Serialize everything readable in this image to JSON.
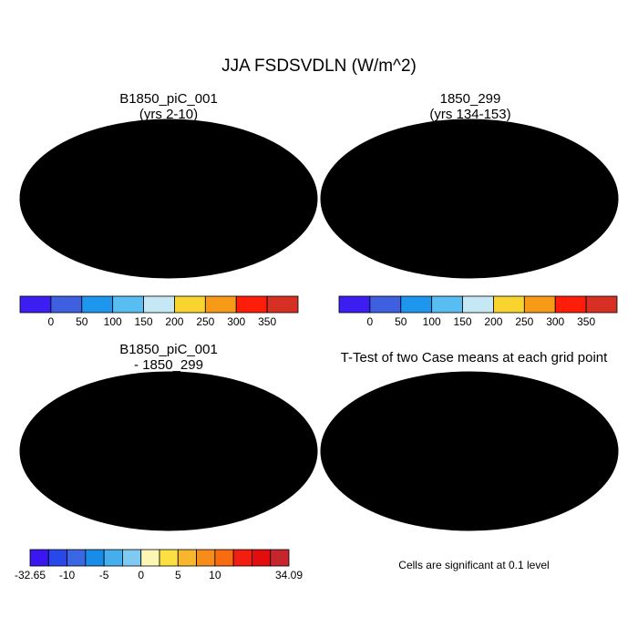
{
  "figure": {
    "title": "JJA FSDSVDLN (W/m^2)"
  },
  "panels": [
    {
      "title_line1": "B1850_piC_001",
      "title_line2": "(yrs 2-10)"
    },
    {
      "title_line1": "1850_299",
      "title_line2": "(yrs 134-153)"
    },
    {
      "title_line1": "B1850_piC_001",
      "title_line2": "- 1850_299"
    },
    {
      "title_line1": "T-Test of two Case means at each grid point",
      "title_line2": ""
    }
  ],
  "significance_note": "Cells are significant at 0.1 level",
  "chart_data": [
    {
      "type": "heatmap",
      "title": "B1850_piC_001 (yrs 2-10)",
      "colorbar": {
        "colors": [
          "#3d1ef2",
          "#3d5fe0",
          "#1f96ee",
          "#58bdf0",
          "#c6e8f5",
          "#f9d42f",
          "#f79a18",
          "#fd1d08",
          "#d63024"
        ],
        "labels": [
          "0",
          "50",
          "100",
          "150",
          "200",
          "250",
          "300",
          "350"
        ]
      }
    },
    {
      "type": "heatmap",
      "title": "1850_299 (yrs 134-153)",
      "colorbar": {
        "colors": [
          "#3d1ef2",
          "#3d5fe0",
          "#1f96ee",
          "#58bdf0",
          "#c6e8f5",
          "#f9d42f",
          "#f79a18",
          "#fd1d08",
          "#d63024"
        ],
        "labels": [
          "0",
          "50",
          "100",
          "150",
          "200",
          "250",
          "300",
          "350"
        ]
      }
    },
    {
      "type": "heatmap",
      "title": "B1850_piC_001 - 1850_299",
      "colorbar": {
        "colors": [
          "#3a17f0",
          "#2848ec",
          "#3a68e4",
          "#178ce8",
          "#45aeee",
          "#7fcaf2",
          "#fbf6b4",
          "#fce043",
          "#f7b62b",
          "#f68d1a",
          "#f86c10",
          "#f21e0f",
          "#e30d0d",
          "#c5252b"
        ],
        "labels": [
          "-32.65",
          "-10",
          "-5",
          "0",
          "5",
          "10",
          "34.09"
        ]
      }
    },
    {
      "type": "heatmap",
      "title": "T-Test of two Case means at each grid point",
      "significant_color": "#ff0000"
    }
  ]
}
